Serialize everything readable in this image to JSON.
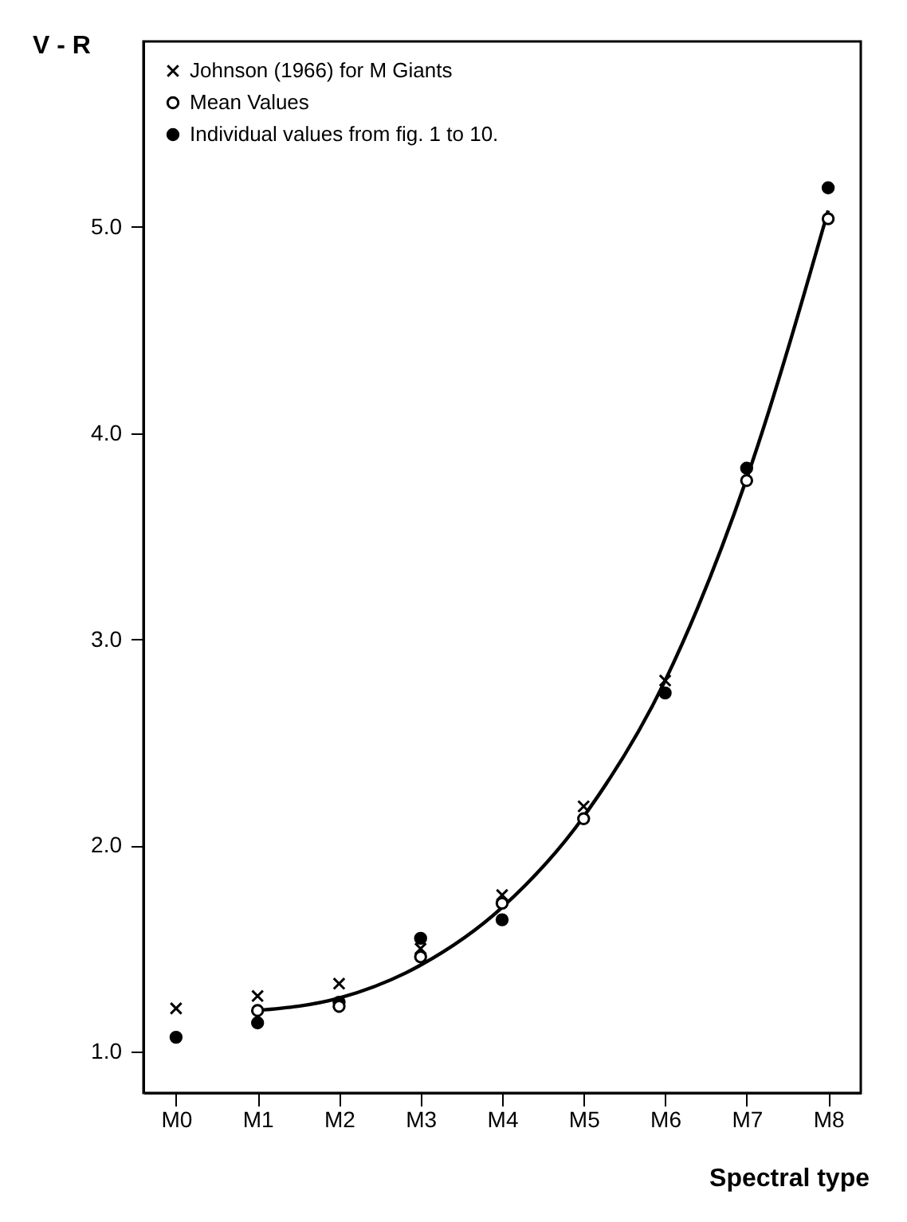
{
  "chart_data": {
    "type": "scatter",
    "xlabel": "Spectral type",
    "ylabel": "V - R",
    "categories": [
      "M0",
      "M1",
      "M2",
      "M3",
      "M4",
      "M5",
      "M6",
      "M7",
      "M8"
    ],
    "ylim": [
      0.8,
      5.9
    ],
    "yticks": [
      {
        "value": 1,
        "label": "1.0"
      },
      {
        "value": 2,
        "label": "2.0"
      },
      {
        "value": 3,
        "label": "3.0"
      },
      {
        "value": 4,
        "label": "4.0"
      },
      {
        "value": 5,
        "label": "5.0"
      }
    ],
    "grid": false,
    "legend": "top left",
    "series": [
      {
        "name": "Johnson (1966) for M Giants",
        "marker": "cross",
        "color": "#000000",
        "values": [
          1.21,
          1.27,
          1.33,
          1.5,
          1.76,
          2.19,
          2.8,
          null,
          null
        ]
      },
      {
        "name": "Mean Values",
        "marker": "circle",
        "color": "#ffffff",
        "values": [
          null,
          1.2,
          1.22,
          1.46,
          1.72,
          2.13,
          null,
          3.77,
          5.04
        ]
      },
      {
        "name": "Individual values from fig. 1 to 10.",
        "marker": "circle",
        "color": "#000000",
        "values": [
          1.07,
          1.14,
          1.24,
          1.55,
          1.64,
          null,
          2.74,
          3.83,
          5.19
        ]
      },
      {
        "type": "line",
        "color": "#000000",
        "line_style": "solid",
        "values": [
          null,
          1.2,
          1.26,
          1.42,
          1.7,
          2.14,
          2.8,
          3.78,
          5.08
        ]
      }
    ]
  }
}
